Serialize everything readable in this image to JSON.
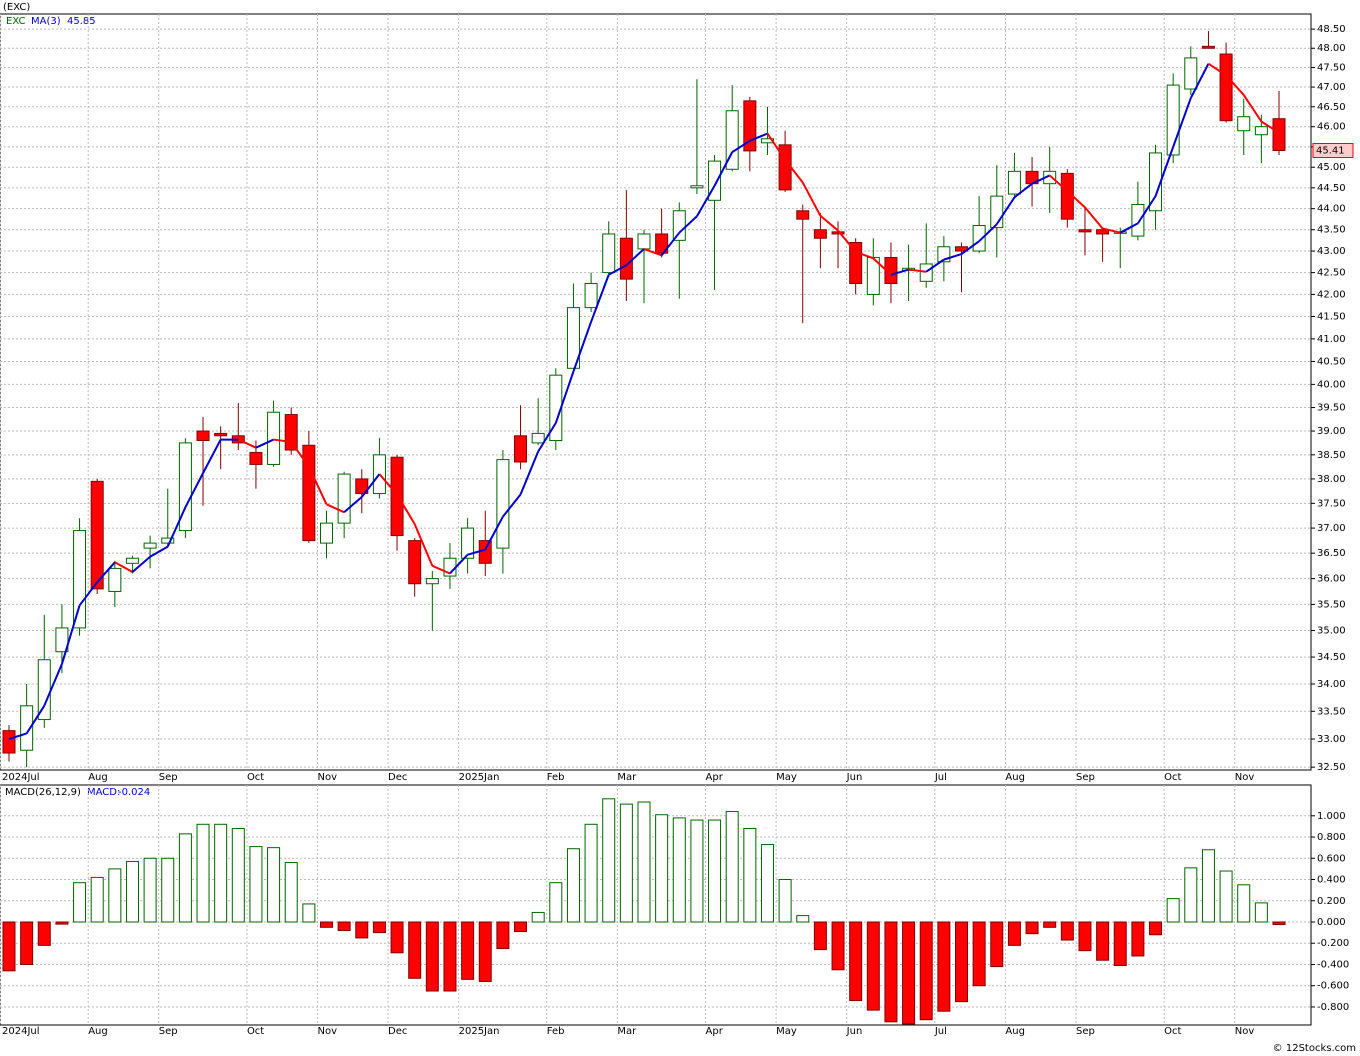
{
  "chart_data": [
    {
      "type": "candlestick",
      "title": "(EXC)",
      "ticker": "EXC",
      "log": true,
      "grid": true,
      "up_color": "#006400",
      "down_color": "#ff0000",
      "tag_color": "#ff0000",
      "categories": [
        "2024Jul",
        null,
        null,
        null,
        null,
        "Aug",
        null,
        null,
        null,
        "Sep",
        null,
        null,
        null,
        null,
        "Oct",
        null,
        null,
        null,
        "Nov",
        null,
        null,
        null,
        "Dec",
        null,
        null,
        null,
        "2025Jan",
        null,
        null,
        null,
        null,
        "Feb",
        null,
        null,
        null,
        "Mar",
        null,
        null,
        null,
        null,
        "Apr",
        null,
        null,
        null,
        "May",
        null,
        null,
        null,
        "Jun",
        null,
        null,
        null,
        null,
        "Jul",
        null,
        null,
        null,
        "Aug",
        null,
        null,
        null,
        "Sep",
        null,
        null,
        null,
        null,
        "Oct",
        null,
        null,
        null,
        "Nov",
        null,
        null
      ],
      "open": [
        33.15,
        32.8,
        33.35,
        34.6,
        35.05,
        37.95,
        35.75,
        36.3,
        36.6,
        36.7,
        36.95,
        39.0,
        38.95,
        38.9,
        38.55,
        38.3,
        39.35,
        38.7,
        36.7,
        37.1,
        38.0,
        37.7,
        38.45,
        36.75,
        35.9,
        36.05,
        36.4,
        36.75,
        36.6,
        38.9,
        38.75,
        38.8,
        40.35,
        41.7,
        42.5,
        43.3,
        43.05,
        43.4,
        43.25,
        44.5,
        44.2,
        44.95,
        46.65,
        45.6,
        45.55,
        43.95,
        43.5,
        43.45,
        43.2,
        42.0,
        42.85,
        42.55,
        42.3,
        42.75,
        43.1,
        43.0,
        43.55,
        44.35,
        44.9,
        44.6,
        44.85,
        43.5,
        43.5,
        43.42,
        43.35,
        43.95,
        45.3,
        46.95,
        48.05,
        47.85,
        45.9,
        45.8,
        46.2
      ],
      "high": [
        33.25,
        34.0,
        35.3,
        35.5,
        37.2,
        38.0,
        36.35,
        36.45,
        36.85,
        37.8,
        38.85,
        39.3,
        39.1,
        39.6,
        38.8,
        39.65,
        39.5,
        39.0,
        37.35,
        38.15,
        38.2,
        38.85,
        38.5,
        36.8,
        36.15,
        36.7,
        37.2,
        37.35,
        38.6,
        39.55,
        39.7,
        40.35,
        42.25,
        42.5,
        43.7,
        44.45,
        43.5,
        44.0,
        44.15,
        47.2,
        45.3,
        47.05,
        46.75,
        46.5,
        45.9,
        44.1,
        43.9,
        43.7,
        43.3,
        43.3,
        43.2,
        43.15,
        43.65,
        43.35,
        43.2,
        44.3,
        45.05,
        45.35,
        45.25,
        45.5,
        44.95,
        44.05,
        43.55,
        43.55,
        44.65,
        45.55,
        47.35,
        48.05,
        48.45,
        48.15,
        46.7,
        46.3,
        46.9
      ],
      "low": [
        32.6,
        32.5,
        33.2,
        34.2,
        34.9,
        35.7,
        35.45,
        36.1,
        36.2,
        36.65,
        36.8,
        37.45,
        38.2,
        38.6,
        37.8,
        38.25,
        38.5,
        36.7,
        36.4,
        36.8,
        37.3,
        37.6,
        36.55,
        35.65,
        35.0,
        35.8,
        36.1,
        36.05,
        36.1,
        38.2,
        38.7,
        38.6,
        40.25,
        41.6,
        42.4,
        41.85,
        41.8,
        42.85,
        41.9,
        44.35,
        42.1,
        44.9,
        44.9,
        45.3,
        44.4,
        41.35,
        42.6,
        42.6,
        42.0,
        41.75,
        41.8,
        41.85,
        42.15,
        42.3,
        42.05,
        42.95,
        42.85,
        44.25,
        44.05,
        43.9,
        43.55,
        42.9,
        42.75,
        42.6,
        43.25,
        43.5,
        45.1,
        46.8,
        48.0,
        46.1,
        45.3,
        45.1,
        45.3
      ],
      "close": [
        32.75,
        33.6,
        34.45,
        35.05,
        36.95,
        35.8,
        36.2,
        36.4,
        36.7,
        36.8,
        38.75,
        38.8,
        38.9,
        38.75,
        38.3,
        39.4,
        38.6,
        36.75,
        37.1,
        38.1,
        37.7,
        38.5,
        36.85,
        35.9,
        36.0,
        36.4,
        37.0,
        36.3,
        38.4,
        38.35,
        38.95,
        40.2,
        41.7,
        42.25,
        43.4,
        42.35,
        43.4,
        42.95,
        43.95,
        44.55,
        45.15,
        46.4,
        45.4,
        45.7,
        44.45,
        43.75,
        43.3,
        43.4,
        42.25,
        42.85,
        42.25,
        42.6,
        42.7,
        43.1,
        43.0,
        43.6,
        44.3,
        44.9,
        44.6,
        44.9,
        43.75,
        43.45,
        43.4,
        43.45,
        44.1,
        45.35,
        47.05,
        47.75,
        48.0,
        46.15,
        46.25,
        46.0,
        45.41
      ],
      "ma": {
        "name": "MA(3)",
        "up_color": "#0000cc",
        "down_color": "#ff0000",
        "values": [
          33.0,
          33.1,
          33.6,
          34.37,
          35.48,
          35.93,
          36.32,
          36.13,
          36.43,
          36.63,
          37.42,
          38.12,
          38.82,
          38.82,
          38.65,
          38.82,
          38.77,
          38.25,
          37.48,
          37.32,
          37.63,
          38.1,
          37.68,
          37.08,
          36.25,
          36.1,
          36.47,
          36.57,
          37.23,
          37.68,
          38.57,
          39.17,
          40.28,
          41.38,
          42.45,
          42.67,
          43.05,
          42.9,
          43.43,
          43.82,
          44.55,
          45.37,
          45.65,
          45.83,
          45.18,
          44.63,
          43.83,
          43.48,
          42.98,
          42.83,
          42.45,
          42.57,
          42.52,
          42.8,
          42.93,
          43.23,
          43.63,
          44.27,
          44.6,
          44.8,
          44.42,
          44.03,
          43.53,
          43.43,
          43.65,
          44.3,
          45.5,
          46.72,
          47.6,
          47.3,
          46.8,
          46.13,
          45.85
        ]
      },
      "ylim": [
        32.45,
        48.9
      ],
      "yticks": [
        {
          "value": 32.5,
          "label": "32.50"
        },
        {
          "value": 33,
          "label": "33.00"
        },
        {
          "value": 33.5,
          "label": "33.50"
        },
        {
          "value": 34,
          "label": "34.00"
        },
        {
          "value": 34.5,
          "label": "34.50"
        },
        {
          "value": 35,
          "label": "35.00"
        },
        {
          "value": 35.5,
          "label": "35.50"
        },
        {
          "value": 36,
          "label": "36.00"
        },
        {
          "value": 36.5,
          "label": "36.50"
        },
        {
          "value": 37,
          "label": "37.00"
        },
        {
          "value": 37.5,
          "label": "37.50"
        },
        {
          "value": 38,
          "label": "38.00"
        },
        {
          "value": 38.5,
          "label": "38.50"
        },
        {
          "value": 39,
          "label": "39.00"
        },
        {
          "value": 39.5,
          "label": "39.50"
        },
        {
          "value": 40,
          "label": "40.00"
        },
        {
          "value": 40.5,
          "label": "40.50"
        },
        {
          "value": 41,
          "label": "41.00"
        },
        {
          "value": 41.5,
          "label": "41.50"
        },
        {
          "value": 42,
          "label": "42.00"
        },
        {
          "value": 42.5,
          "label": "42.50"
        },
        {
          "value": 43,
          "label": "43.00"
        },
        {
          "value": 43.5,
          "label": "43.50"
        },
        {
          "value": 44,
          "label": "44.00"
        },
        {
          "value": 44.5,
          "label": "44.50"
        },
        {
          "value": 45,
          "label": "45.00"
        },
        {
          "value": 45.5,
          "label": "45.50"
        },
        {
          "value": 46,
          "label": "46.00"
        },
        {
          "value": 46.5,
          "label": "46.50"
        },
        {
          "value": 47,
          "label": "47.00"
        },
        {
          "value": 47.5,
          "label": "47.50"
        },
        {
          "value": 48,
          "label": "48.00"
        },
        {
          "value": 48.5,
          "label": "48.50"
        }
      ]
    },
    {
      "type": "bar",
      "title": "MACD(26,12,9)",
      "value_name": "MACD:",
      "grid": true,
      "up_color": "#006400",
      "down_color": "#ff0000",
      "values": [
        -0.46,
        -0.4,
        -0.22,
        -0.02,
        0.37,
        0.42,
        0.5,
        0.57,
        0.6,
        0.6,
        0.83,
        0.92,
        0.92,
        0.88,
        0.71,
        0.7,
        0.56,
        0.17,
        -0.05,
        -0.08,
        -0.15,
        -0.1,
        -0.29,
        -0.53,
        -0.65,
        -0.65,
        -0.54,
        -0.56,
        -0.25,
        -0.09,
        0.09,
        0.37,
        0.69,
        0.92,
        1.16,
        1.11,
        1.13,
        1.01,
        0.98,
        0.96,
        0.96,
        1.04,
        0.88,
        0.73,
        0.4,
        0.06,
        -0.26,
        -0.45,
        -0.74,
        -0.83,
        -0.94,
        -0.96,
        -0.92,
        -0.84,
        -0.75,
        -0.6,
        -0.42,
        -0.22,
        -0.11,
        -0.05,
        -0.17,
        -0.27,
        -0.36,
        -0.41,
        -0.32,
        -0.12,
        0.22,
        0.51,
        0.68,
        0.48,
        0.35,
        0.18,
        -0.024
      ],
      "ylim": [
        -0.97,
        1.29
      ],
      "yticks": [
        {
          "value": -0.8,
          "label": "-0.800"
        },
        {
          "value": -0.6,
          "label": "-0.600"
        },
        {
          "value": -0.4,
          "label": "-0.400"
        },
        {
          "value": -0.2,
          "label": "-0.200"
        },
        {
          "value": 0,
          "label": "0.000"
        },
        {
          "value": 0.2,
          "label": "0.200"
        },
        {
          "value": 0.4,
          "label": "0.400"
        },
        {
          "value": 0.6,
          "label": "0.600"
        },
        {
          "value": 0.8,
          "label": "0.800"
        },
        {
          "value": 1.0,
          "label": "1.000"
        }
      ]
    }
  ],
  "footer": "© 12Stocks.com"
}
